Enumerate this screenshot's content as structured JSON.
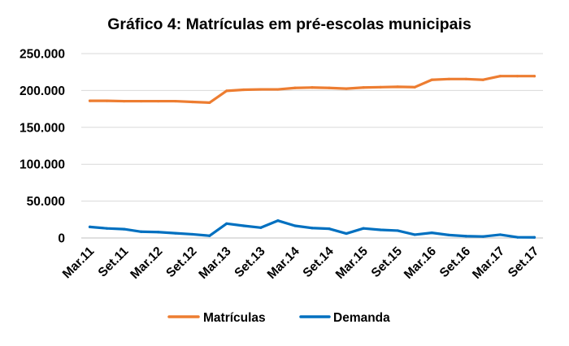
{
  "chart_data": {
    "type": "line",
    "title": "Gráfico 4: Matrículas em pré-escolas municipais",
    "xlabel": "",
    "ylabel": "",
    "ylim": [
      0,
      250000
    ],
    "yticks": [
      0,
      50000,
      100000,
      150000,
      200000,
      250000
    ],
    "ytick_labels": [
      "0",
      "50.000",
      "100.000",
      "150.000",
      "200.000",
      "250.000"
    ],
    "grid": true,
    "legend_position": "bottom-center",
    "tick_labels": [
      "Mar.11",
      "Set.11",
      "Mar.12",
      "Set.12",
      "Mar.13",
      "Set.13",
      "Mar.14",
      "Set.14",
      "Mar.15",
      "Set.15",
      "Mar.16",
      "Set.16",
      "Mar.17",
      "Set.17"
    ],
    "num_points": 27,
    "tick_every": 2,
    "series": [
      {
        "name": "Matrículas",
        "color": "#ED7D31",
        "values": [
          186000,
          186000,
          185500,
          185500,
          185500,
          185500,
          184500,
          183500,
          199500,
          201000,
          201500,
          201500,
          203500,
          204000,
          203500,
          202500,
          204000,
          204500,
          205000,
          204500,
          214500,
          215500,
          215500,
          214500,
          219500,
          219500,
          219500
        ]
      },
      {
        "name": "Demanda",
        "color": "#0070C0",
        "values": [
          15000,
          13000,
          12000,
          8500,
          8000,
          6500,
          5000,
          3000,
          19500,
          16500,
          14000,
          23500,
          16500,
          13500,
          12500,
          6000,
          13000,
          11000,
          10000,
          4500,
          7000,
          4000,
          2500,
          2000,
          4500,
          1000,
          800
        ]
      }
    ]
  }
}
